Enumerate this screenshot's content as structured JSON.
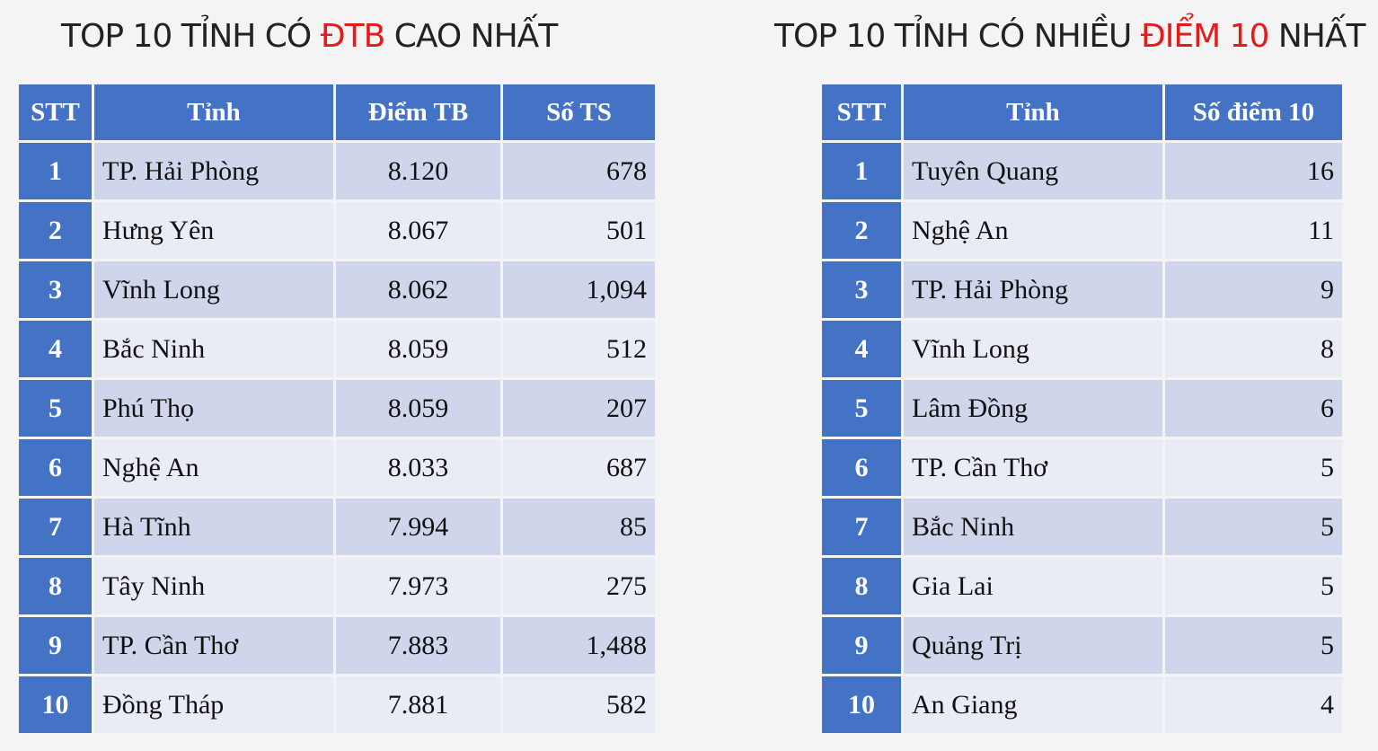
{
  "left": {
    "title": {
      "before": "TOP 10 TỈNH CÓ ",
      "highlight": "ĐTB",
      "after": " CAO NHẤT"
    },
    "headers": [
      "STT",
      "Tỉnh",
      "Điểm TB",
      "Số TS"
    ],
    "rows": [
      [
        "1",
        "TP. Hải Phòng",
        "8.120",
        "678"
      ],
      [
        "2",
        "Hưng Yên",
        "8.067",
        "501"
      ],
      [
        "3",
        "Vĩnh Long",
        "8.062",
        "1,094"
      ],
      [
        "4",
        "Bắc Ninh",
        "8.059",
        "512"
      ],
      [
        "5",
        "Phú Thọ",
        "8.059",
        "207"
      ],
      [
        "6",
        "Nghệ An",
        "8.033",
        "687"
      ],
      [
        "7",
        "Hà Tĩnh",
        "7.994",
        "85"
      ],
      [
        "8",
        "Tây Ninh",
        "7.973",
        "275"
      ],
      [
        "9",
        "TP. Cần Thơ",
        "7.883",
        "1,488"
      ],
      [
        "10",
        "Đồng Tháp",
        "7.881",
        "582"
      ]
    ]
  },
  "right": {
    "title": {
      "before": "TOP 10 TỈNH CÓ NHIỀU ",
      "highlight": "ĐIỂM 10",
      "after": " NHẤT"
    },
    "headers": [
      "STT",
      "Tỉnh",
      "Số điểm 10"
    ],
    "rows": [
      [
        "1",
        "Tuyên Quang",
        "16"
      ],
      [
        "2",
        "Nghệ An",
        "11"
      ],
      [
        "3",
        "TP. Hải Phòng",
        "9"
      ],
      [
        "4",
        "Vĩnh Long",
        "8"
      ],
      [
        "5",
        "Lâm Đồng",
        "6"
      ],
      [
        "6",
        "TP. Cần Thơ",
        "5"
      ],
      [
        "7",
        "Bắc Ninh",
        "5"
      ],
      [
        "8",
        "Gia Lai",
        "5"
      ],
      [
        "9",
        "Quảng Trị",
        "5"
      ],
      [
        "10",
        "An Giang",
        "4"
      ]
    ]
  },
  "colors": {
    "header_bg": "#4472c4",
    "row_band_dark": "#cfd5ea",
    "row_band_light": "#e9ebf5",
    "title_highlight": "#e31b1b"
  }
}
